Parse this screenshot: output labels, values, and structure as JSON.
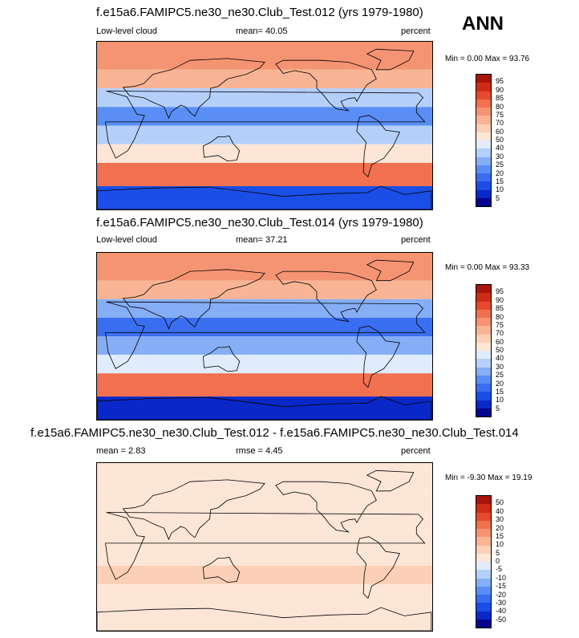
{
  "season": "ANN",
  "panels": [
    {
      "title": "f.e15a6.FAMIPC5.ne30_ne30.Club_Test.012 (yrs 1979-1980)",
      "left_label": "Low-level cloud",
      "mid_label": "mean=  40.05",
      "right_label": "percent",
      "minmax": "Min =   0.00 Max =  93.76"
    },
    {
      "title": "f.e15a6.FAMIPC5.ne30_ne30.Club_Test.014 (yrs 1979-1980)",
      "left_label": "Low-level cloud",
      "mid_label": "mean=  37.21",
      "right_label": "percent",
      "minmax": "Min =   0.00 Max =  93.33"
    },
    {
      "title": "f.e15a6.FAMIPC5.ne30_ne30.Club_Test.012 - f.e15a6.FAMIPC5.ne30_ne30.Club_Test.014",
      "left_label": "mean =   2.83",
      "mid_label": "rmse =   4.45",
      "right_label": "percent",
      "minmax": "Min =  -9.30 Max =  19.19"
    }
  ],
  "colors": {
    "abs_scale": [
      "#04048c",
      "#0a28c8",
      "#1a4ee6",
      "#3a6ef0",
      "#5a8ef4",
      "#86aef6",
      "#b4d0fa",
      "#e0ecfc",
      "#fde6d6",
      "#fbd0b6",
      "#f8b494",
      "#f59472",
      "#f07050",
      "#e64a2e",
      "#cf2c16",
      "#a8150a",
      "#7a0606"
    ],
    "diff_scale": [
      "#04048c",
      "#0a28c8",
      "#1a4ee6",
      "#3a6ef0",
      "#5a8ef4",
      "#86aef6",
      "#b4d0fa",
      "#e0ecfc",
      "#fde6d6",
      "#fbd0b6",
      "#f8b494",
      "#f59472",
      "#f07050",
      "#e64a2e",
      "#cf2c16",
      "#a8150a",
      "#7a0606"
    ]
  },
  "chart_data": [
    {
      "type": "heatmap",
      "title": "f.e15a6.FAMIPC5.ne30_ne30.Club_Test.012 (yrs 1979-1980)",
      "variable": "Low-level cloud",
      "units": "percent",
      "mean": 40.05,
      "min": 0.0,
      "max": 93.76,
      "levels": [
        5,
        10,
        15,
        20,
        25,
        30,
        40,
        50,
        60,
        70,
        75,
        80,
        85,
        90,
        95
      ],
      "level_labels": [
        "5",
        "10",
        "15",
        "20",
        "25",
        "30",
        "40",
        "50",
        "60",
        "70",
        "75",
        "80",
        "85",
        "90",
        "95"
      ],
      "bands": [
        {
          "lat": [
            90,
            60
          ],
          "value": 78
        },
        {
          "lat": [
            60,
            40
          ],
          "value": 72
        },
        {
          "lat": [
            40,
            20
          ],
          "value": 30
        },
        {
          "lat": [
            20,
            0
          ],
          "value": 20
        },
        {
          "lat": [
            0,
            -20
          ],
          "value": 30
        },
        {
          "lat": [
            -20,
            -40
          ],
          "value": 50
        },
        {
          "lat": [
            -40,
            -65
          ],
          "value": 80
        },
        {
          "lat": [
            -65,
            -90
          ],
          "value": 10
        }
      ]
    },
    {
      "type": "heatmap",
      "title": "f.e15a6.FAMIPC5.ne30_ne30.Club_Test.014 (yrs 1979-1980)",
      "variable": "Low-level cloud",
      "units": "percent",
      "mean": 37.21,
      "min": 0.0,
      "max": 93.33,
      "levels": [
        5,
        10,
        15,
        20,
        25,
        30,
        40,
        50,
        60,
        70,
        75,
        80,
        85,
        90,
        95
      ],
      "level_labels": [
        "5",
        "10",
        "15",
        "20",
        "25",
        "30",
        "40",
        "50",
        "60",
        "70",
        "75",
        "80",
        "85",
        "90",
        "95"
      ],
      "bands": [
        {
          "lat": [
            90,
            60
          ],
          "value": 76
        },
        {
          "lat": [
            60,
            40
          ],
          "value": 70
        },
        {
          "lat": [
            40,
            20
          ],
          "value": 25
        },
        {
          "lat": [
            20,
            0
          ],
          "value": 15
        },
        {
          "lat": [
            0,
            -20
          ],
          "value": 25
        },
        {
          "lat": [
            -20,
            -40
          ],
          "value": 45
        },
        {
          "lat": [
            -40,
            -65
          ],
          "value": 80
        },
        {
          "lat": [
            -65,
            -90
          ],
          "value": 5
        }
      ]
    },
    {
      "type": "heatmap",
      "title": "f.e15a6.FAMIPC5.ne30_ne30.Club_Test.012 - f.e15a6.FAMIPC5.ne30_ne30.Club_Test.014",
      "units": "percent",
      "mean": 2.83,
      "rmse": 4.45,
      "min": -9.3,
      "max": 19.19,
      "levels": [
        -50,
        -40,
        -30,
        -20,
        -15,
        -10,
        -5,
        0,
        5,
        10,
        15,
        20,
        30,
        40,
        50
      ],
      "level_labels": [
        "-50",
        "-40",
        "-30",
        "-20",
        "-15",
        "-10",
        "-5",
        "0",
        "5",
        "10",
        "15",
        "20",
        "30",
        "40",
        "50"
      ],
      "bands": [
        {
          "lat": [
            90,
            60
          ],
          "value": 2
        },
        {
          "lat": [
            60,
            40
          ],
          "value": 2
        },
        {
          "lat": [
            40,
            20
          ],
          "value": 3
        },
        {
          "lat": [
            20,
            0
          ],
          "value": 3
        },
        {
          "lat": [
            0,
            -20
          ],
          "value": 4
        },
        {
          "lat": [
            -20,
            -40
          ],
          "value": 5
        },
        {
          "lat": [
            -40,
            -65
          ],
          "value": 2
        },
        {
          "lat": [
            -65,
            -90
          ],
          "value": 3
        }
      ]
    }
  ]
}
